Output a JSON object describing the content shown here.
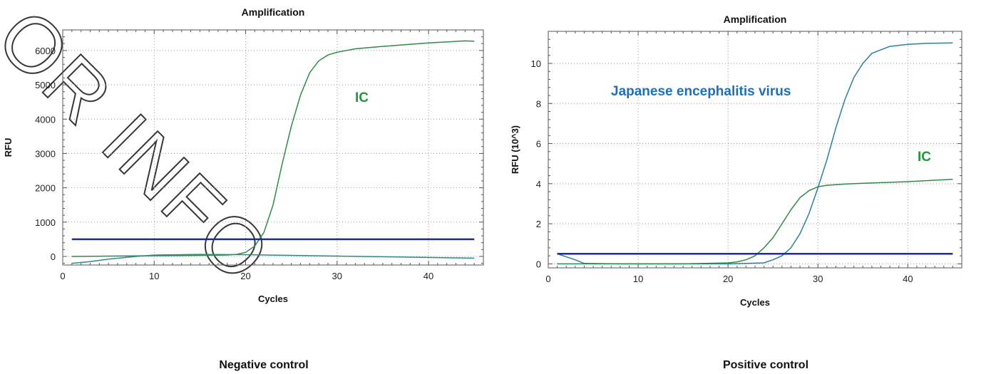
{
  "watermark": "OR INFO",
  "chart_data": [
    {
      "type": "line",
      "title": "Amplification",
      "xlabel": "Cycles",
      "ylabel": "RFU",
      "xlim": [
        0,
        46
      ],
      "ylim": [
        -250,
        6600
      ],
      "xticks": [
        0,
        10,
        20,
        30,
        40
      ],
      "yticks": [
        0,
        1000,
        2000,
        3000,
        4000,
        5000,
        6000
      ],
      "grid": true,
      "caption": "Negative control",
      "annotations": [
        {
          "text": "IC",
          "color": "#1e9a3c"
        }
      ],
      "series": [
        {
          "color": "#2f8a4a",
          "x": [
            1,
            5,
            10,
            15,
            18,
            19,
            20,
            21,
            22,
            23,
            24,
            25,
            26,
            27,
            28,
            29,
            30,
            32,
            35,
            40,
            44,
            45
          ],
          "y": [
            0,
            10,
            20,
            30,
            40,
            60,
            120,
            300,
            700,
            1500,
            2700,
            3800,
            4700,
            5350,
            5700,
            5870,
            5950,
            6050,
            6120,
            6220,
            6280,
            6270
          ]
        },
        {
          "color": "#2b8c80",
          "x": [
            1,
            3,
            5,
            8,
            10,
            15,
            20,
            25,
            30,
            35,
            40,
            45
          ],
          "y": [
            -200,
            -150,
            -80,
            0,
            40,
            60,
            50,
            30,
            10,
            -10,
            -30,
            -50
          ]
        },
        {
          "color": "#1f2d9a",
          "x": [
            1,
            45
          ],
          "y": [
            500,
            500
          ]
        }
      ]
    },
    {
      "type": "line",
      "title": "Amplification",
      "xlabel": "Cycles",
      "ylabel": "RFU (10^3)",
      "xlim": [
        0,
        46
      ],
      "ylim": [
        -0.2,
        11.6
      ],
      "xticks": [
        0,
        10,
        20,
        30,
        40
      ],
      "yticks": [
        0,
        2,
        4,
        6,
        8,
        10
      ],
      "grid": true,
      "caption": "Positive control",
      "annotations": [
        {
          "text": "Japanese encephalitis virus",
          "color": "#1f6fb8"
        },
        {
          "text": "IC",
          "color": "#1e9a3c"
        }
      ],
      "series": [
        {
          "color": "#2b7fa0",
          "x": [
            1,
            3,
            4,
            8,
            12,
            16,
            20,
            22,
            24,
            25,
            26,
            27,
            28,
            29,
            30,
            31,
            32,
            33,
            34,
            35,
            36,
            38,
            40,
            42,
            45
          ],
          "y": [
            0.5,
            0.2,
            0.02,
            0,
            0,
            0,
            0,
            0.02,
            0.05,
            0.2,
            0.4,
            0.8,
            1.5,
            2.5,
            3.8,
            5.2,
            6.8,
            8.2,
            9.3,
            10.0,
            10.5,
            10.85,
            10.95,
            11.0,
            11.02
          ]
        },
        {
          "color": "#2f8a4a",
          "x": [
            1,
            5,
            10,
            15,
            20,
            21,
            22,
            23,
            24,
            25,
            26,
            27,
            28,
            29,
            30,
            31,
            33,
            35,
            40,
            45
          ],
          "y": [
            0,
            0,
            0,
            0,
            0.05,
            0.1,
            0.2,
            0.4,
            0.8,
            1.3,
            2.0,
            2.7,
            3.3,
            3.65,
            3.85,
            3.92,
            3.98,
            4.02,
            4.1,
            4.22
          ]
        },
        {
          "color": "#1f2d9a",
          "x": [
            1,
            45
          ],
          "y": [
            0.5,
            0.5
          ]
        }
      ]
    }
  ]
}
